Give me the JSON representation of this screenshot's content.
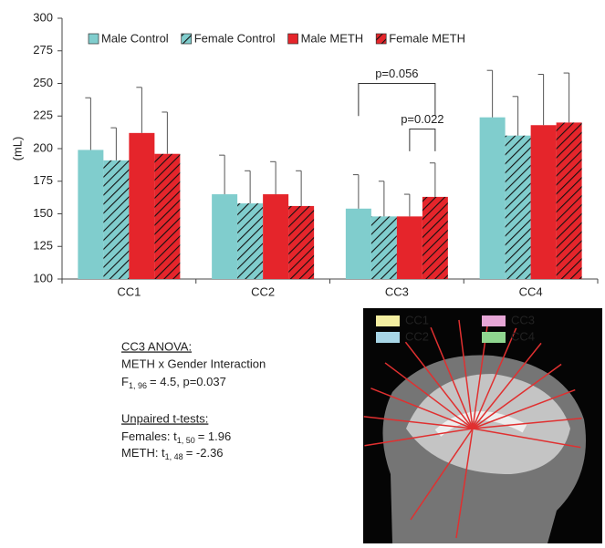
{
  "chart_data": {
    "type": "bar",
    "y_label": "(mL)",
    "categories": [
      "CC1",
      "CC2",
      "CC3",
      "CC4"
    ],
    "series": [
      {
        "name": "Male Control",
        "color": "#80cdcd",
        "hatch": false,
        "values": [
          199,
          165,
          154,
          224
        ],
        "errors": [
          40,
          30,
          26,
          36
        ]
      },
      {
        "name": "Female Control",
        "color": "#80cdcd",
        "hatch": true,
        "values": [
          191,
          158,
          148,
          210
        ],
        "errors": [
          25,
          25,
          27,
          30
        ]
      },
      {
        "name": "Male METH",
        "color": "#e5252b",
        "hatch": false,
        "values": [
          212,
          165,
          148,
          218
        ],
        "errors": [
          35,
          25,
          17,
          39
        ]
      },
      {
        "name": "Female METH",
        "color": "#e5252b",
        "hatch": true,
        "values": [
          196,
          156,
          163,
          220
        ],
        "errors": [
          32,
          27,
          26,
          38
        ]
      }
    ],
    "ylim": [
      100,
      300
    ],
    "yticks": [
      100,
      125,
      150,
      175,
      200,
      225,
      250,
      275,
      300
    ],
    "grid": false,
    "legend": "top",
    "annotations": {
      "brackets": [
        "p=0.056",
        "p=0.022"
      ],
      "anova_heading": "CC3 ANOVA:",
      "anova_line": "METH x Gender Interaction",
      "anova_stat": {
        "main": "F",
        "sub": "1, 96",
        "rest": "= 4.5, p=0.037"
      },
      "ttest_heading": "Unpaired t-tests:",
      "ttest_females": {
        "main": "Females: t",
        "sub": "1, 50",
        "rest": "= 1.96"
      },
      "ttest_meth": {
        "main": "METH: t",
        "sub": "1, 48",
        "rest": "= -2.36"
      }
    },
    "inset": {
      "labels": [
        "CC1",
        "CC2",
        "CC3",
        "CC4"
      ],
      "colors": [
        "#f3eea0",
        "#a8d6e6",
        "#e6a6d6",
        "#8fd68f"
      ]
    }
  }
}
